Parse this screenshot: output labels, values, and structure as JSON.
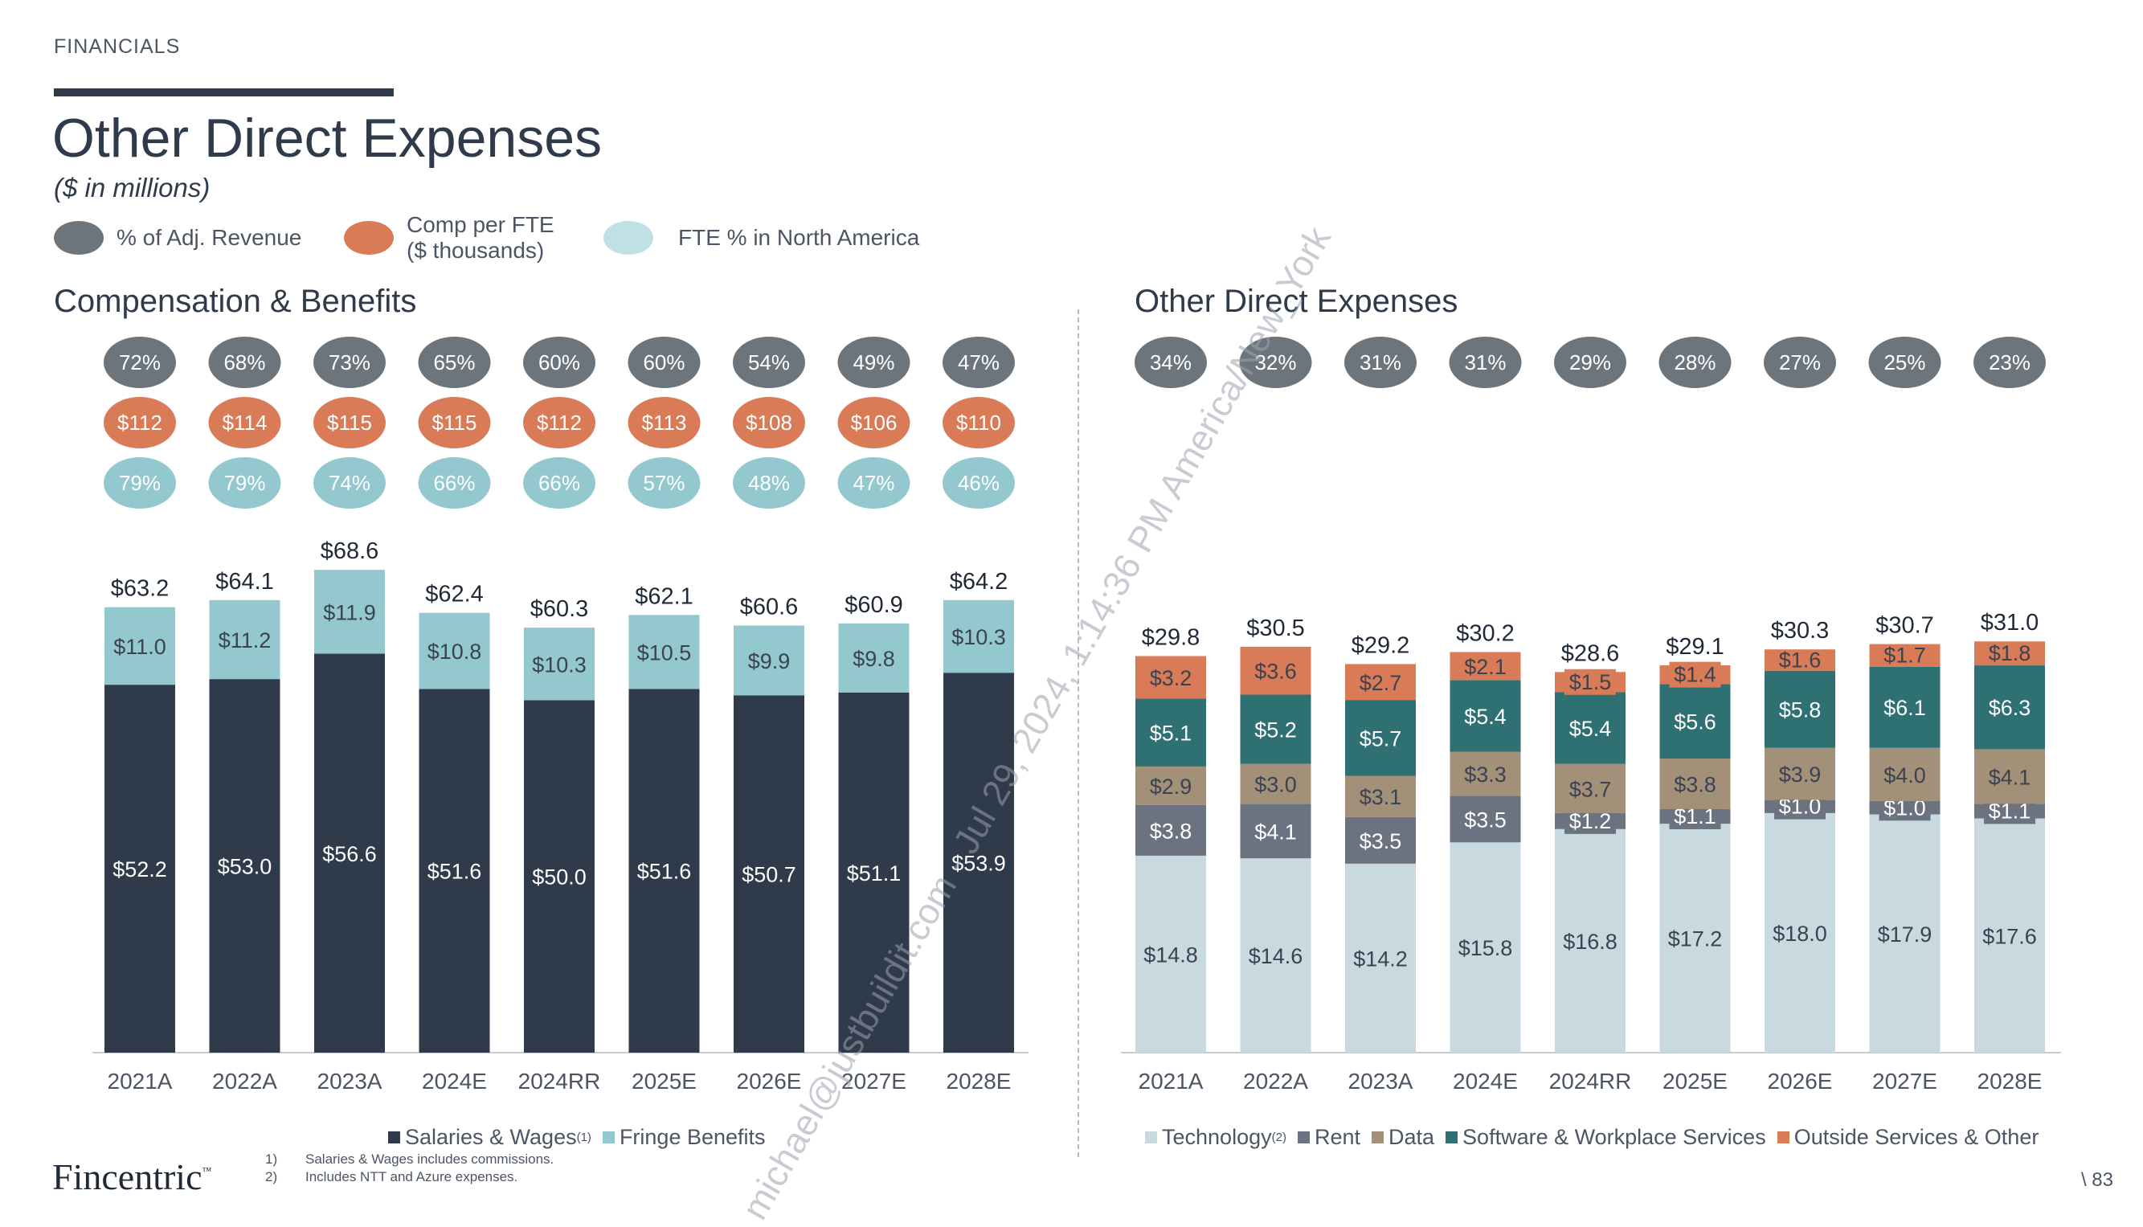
{
  "header": {
    "section": "FINANCIALS",
    "title": "Other Direct Expenses",
    "subtitle": "($ in millions)"
  },
  "top_legend": [
    {
      "label": "% of Adj. Revenue",
      "color": "#6d757c"
    },
    {
      "label_line1": "Comp per FTE",
      "label_line2": "($ thousands)",
      "color": "#d97b56"
    },
    {
      "label": "FTE % in North America",
      "color": "#bfe1e6"
    }
  ],
  "chart_data": [
    {
      "type": "bar",
      "stacked": true,
      "title": "Compensation & Benefits",
      "categories": [
        "2021A",
        "2022A",
        "2023A",
        "2024E",
        "2024RR",
        "2025E",
        "2026E",
        "2027E",
        "2028E"
      ],
      "series": [
        {
          "name": "Salaries & Wages",
          "footnote": "(1)",
          "color": "#2f3a4a",
          "values": [
            52.2,
            53.0,
            56.6,
            51.6,
            50.0,
            51.6,
            50.7,
            51.1,
            53.9
          ]
        },
        {
          "name": "Fringe Benefits",
          "color": "#93c9ce",
          "values": [
            11.0,
            11.2,
            11.9,
            10.8,
            10.3,
            10.5,
            9.9,
            9.8,
            10.3
          ]
        }
      ],
      "value_labels": [
        [
          "$52.2",
          "$53.0",
          "$56.6",
          "$51.6",
          "$50.0",
          "$51.6",
          "$50.7",
          "$51.1",
          "$53.9"
        ],
        [
          "$11.0",
          "$11.2",
          "$11.9",
          "$10.8",
          "$10.3",
          "$10.5",
          "$9.9",
          "$9.8",
          "$10.3"
        ]
      ],
      "totals": [
        "$63.2",
        "$64.1",
        "$68.6",
        "$62.4",
        "$60.3",
        "$62.1",
        "$60.6",
        "$60.9",
        "$64.2"
      ],
      "total_values": [
        63.2,
        64.1,
        68.6,
        62.4,
        60.3,
        62.1,
        60.6,
        60.9,
        64.2
      ],
      "badges": {
        "pct_adj_revenue": [
          "72%",
          "68%",
          "73%",
          "65%",
          "60%",
          "60%",
          "54%",
          "49%",
          "47%"
        ],
        "comp_per_fte": [
          "$112",
          "$114",
          "$115",
          "$115",
          "$112",
          "$113",
          "$108",
          "$106",
          "$110"
        ],
        "fte_pct_na": [
          "79%",
          "79%",
          "74%",
          "66%",
          "66%",
          "57%",
          "48%",
          "47%",
          "46%"
        ]
      },
      "ylim": [
        0,
        70
      ],
      "grid": false,
      "legend_position": "bottom"
    },
    {
      "type": "bar",
      "stacked": true,
      "title": "Other Direct Expenses",
      "categories": [
        "2021A",
        "2022A",
        "2023A",
        "2024E",
        "2024RR",
        "2025E",
        "2026E",
        "2027E",
        "2028E"
      ],
      "series": [
        {
          "name": "Technology",
          "footnote": "(2)",
          "color": "#c8d9df",
          "values": [
            14.8,
            14.6,
            14.2,
            15.8,
            16.8,
            17.2,
            18.0,
            17.9,
            17.6
          ]
        },
        {
          "name": "Rent",
          "color": "#6b7280",
          "values": [
            3.8,
            4.1,
            3.5,
            3.5,
            1.2,
            1.1,
            1.0,
            1.0,
            1.1
          ]
        },
        {
          "name": "Data",
          "color": "#a39079",
          "values": [
            2.9,
            3.0,
            3.1,
            3.3,
            3.7,
            3.8,
            3.9,
            4.0,
            4.1
          ]
        },
        {
          "name": "Software & Workplace Services",
          "color": "#2f7073",
          "values": [
            5.1,
            5.2,
            5.7,
            5.4,
            5.4,
            5.6,
            5.8,
            6.1,
            6.3
          ]
        },
        {
          "name": "Outside Services & Other",
          "color": "#d97b56",
          "values": [
            3.2,
            3.6,
            2.7,
            2.1,
            1.5,
            1.4,
            1.6,
            1.7,
            1.8
          ]
        }
      ],
      "value_labels": [
        [
          "$14.8",
          "$14.6",
          "$14.2",
          "$15.8",
          "$16.8",
          "$17.2",
          "$18.0",
          "$17.9",
          "$17.6"
        ],
        [
          "$3.8",
          "$4.1",
          "$3.5",
          "$3.5",
          "$1.2",
          "$1.1",
          "$1.0",
          "$1.0",
          "$1.1"
        ],
        [
          "$2.9",
          "$3.0",
          "$3.1",
          "$3.3",
          "$3.7",
          "$3.8",
          "$3.9",
          "$4.0",
          "$4.1"
        ],
        [
          "$5.1",
          "$5.2",
          "$5.7",
          "$5.4",
          "$5.4",
          "$5.6",
          "$5.8",
          "$6.1",
          "$6.3"
        ],
        [
          "$3.2",
          "$3.6",
          "$2.7",
          "$2.1",
          "$1.5",
          "$1.4",
          "$1.6",
          "$1.7",
          "$1.8"
        ]
      ],
      "totals": [
        "$29.8",
        "$30.5",
        "$29.2",
        "$30.2",
        "$28.6",
        "$29.1",
        "$30.3",
        "$30.7",
        "$31.0"
      ],
      "total_values": [
        29.8,
        30.5,
        29.2,
        30.2,
        28.6,
        29.1,
        30.3,
        30.7,
        31.0
      ],
      "badges": {
        "pct_adj_revenue": [
          "34%",
          "32%",
          "31%",
          "31%",
          "29%",
          "28%",
          "27%",
          "25%",
          "23%"
        ]
      },
      "ylim": [
        0,
        31.7
      ],
      "grid": false,
      "legend_position": "bottom"
    }
  ],
  "footnotes": [
    {
      "num": "1)",
      "text": "Salaries & Wages includes commissions."
    },
    {
      "num": "2)",
      "text": "Includes NTT and Azure expenses."
    }
  ],
  "logo": {
    "name": "Fincentric",
    "mark": "™"
  },
  "page_number": "\\ 83",
  "watermark": "michael@justbuildit.com - Jul 29, 2024, 1:14:36 PM America/New_York"
}
